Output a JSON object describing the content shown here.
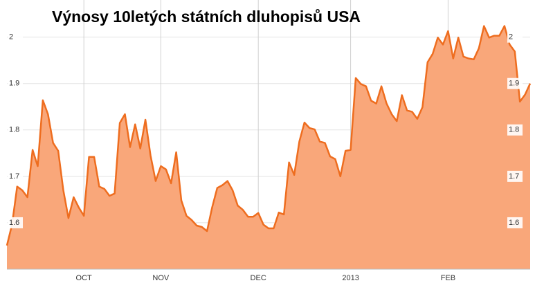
{
  "chart_data": {
    "type": "area",
    "title": "Výnosy 10letých státních dluhopisů USA",
    "categories": [
      null,
      null,
      null,
      null,
      null,
      null,
      null,
      null,
      null,
      null,
      null,
      null,
      null,
      null,
      null,
      "OCT",
      null,
      null,
      null,
      null,
      null,
      null,
      null,
      null,
      null,
      null,
      null,
      null,
      null,
      null,
      "NOV",
      null,
      null,
      null,
      null,
      null,
      null,
      null,
      null,
      null,
      null,
      null,
      null,
      null,
      null,
      null,
      null,
      null,
      null,
      "DEC",
      null,
      null,
      null,
      null,
      null,
      null,
      null,
      null,
      null,
      null,
      null,
      null,
      null,
      null,
      null,
      null,
      null,
      "2013",
      null,
      null,
      null,
      null,
      null,
      null,
      null,
      null,
      null,
      null,
      null,
      null,
      null,
      null,
      null,
      null,
      null,
      null,
      "FEB",
      null,
      null,
      null,
      null,
      null,
      null,
      null,
      null,
      null,
      null,
      null,
      null,
      null,
      null,
      null,
      null
    ],
    "values": [
      1.551,
      1.596,
      1.678,
      1.67,
      1.655,
      1.757,
      1.722,
      1.864,
      1.834,
      1.772,
      1.755,
      1.67,
      1.61,
      1.655,
      1.633,
      1.615,
      1.742,
      1.742,
      1.678,
      1.673,
      1.658,
      1.663,
      1.815,
      1.834,
      1.763,
      1.812,
      1.76,
      1.822,
      1.745,
      1.69,
      1.722,
      1.715,
      1.685,
      1.752,
      1.648,
      1.615,
      1.606,
      1.594,
      1.591,
      1.582,
      1.633,
      1.675,
      1.681,
      1.69,
      1.67,
      1.637,
      1.628,
      1.613,
      1.613,
      1.621,
      1.596,
      1.588,
      1.588,
      1.622,
      1.618,
      1.73,
      1.703,
      1.775,
      1.816,
      1.804,
      1.801,
      1.775,
      1.772,
      1.743,
      1.737,
      1.7,
      1.755,
      1.757,
      1.912,
      1.899,
      1.894,
      1.863,
      1.857,
      1.894,
      1.857,
      1.834,
      1.819,
      1.875,
      1.842,
      1.839,
      1.824,
      1.849,
      1.946,
      1.964,
      1.999,
      1.984,
      2.013,
      1.954,
      1.999,
      1.958,
      1.954,
      1.952,
      1.976,
      2.024,
      1.999,
      2.003,
      2.003,
      2.024,
      1.984,
      1.969,
      1.861,
      1.876,
      1.9
    ],
    "color": "#ee6d1f",
    "fill": "#f9a77a",
    "ylim": [
      1.5,
      2.08
    ],
    "yticks": [
      1.6,
      1.7,
      1.8,
      1.9,
      2
    ],
    "grid": true
  }
}
